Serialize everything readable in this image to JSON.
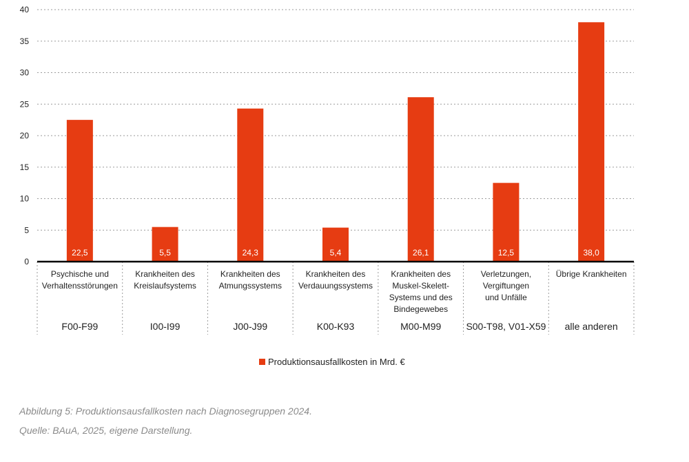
{
  "chart_data": {
    "type": "bar",
    "categories": [
      [
        "Psychische und",
        "Verhaltensstörungen"
      ],
      [
        "Krankheiten des",
        "Kreislaufsystems"
      ],
      [
        "Krankheiten des",
        "Atmungssystems"
      ],
      [
        "Krankheiten des",
        "Verdauungssystems"
      ],
      [
        "Krankheiten des",
        "Muskel-Skelett-",
        "Systems und des",
        "Bindegewebes"
      ],
      [
        "Verletzungen,",
        "Vergiftungen",
        "und Unfälle"
      ],
      [
        "Übrige Krankheiten"
      ]
    ],
    "codes": [
      "F00-F99",
      "I00-I99",
      "J00-J99",
      "K00-K93",
      "M00-M99",
      "S00-T98, V01-X59",
      "alle anderen"
    ],
    "series": [
      {
        "name": "Produktionsausfallkosten in Mrd. €",
        "values": [
          22.5,
          5.5,
          24.3,
          5.4,
          26.1,
          12.5,
          38.0
        ],
        "labels": [
          "22,5",
          "5,5",
          "24,3",
          "5,4",
          "26,1",
          "12,5",
          "38,0"
        ]
      }
    ],
    "yticks": [
      0,
      5,
      10,
      15,
      20,
      25,
      30,
      35,
      40
    ],
    "ylim": [
      0,
      40
    ],
    "grid": true,
    "legend": "bottom-center",
    "colors": {
      "bar": "#e63c12",
      "grid": "#9a9a9a",
      "axis": "#000000"
    }
  },
  "caption": {
    "line1": "Abbildung 5: Produktionsausfallkosten nach Diagnosegruppen 2024.",
    "line2": "Quelle: BAuA, 2025, eigene Darstellung."
  }
}
